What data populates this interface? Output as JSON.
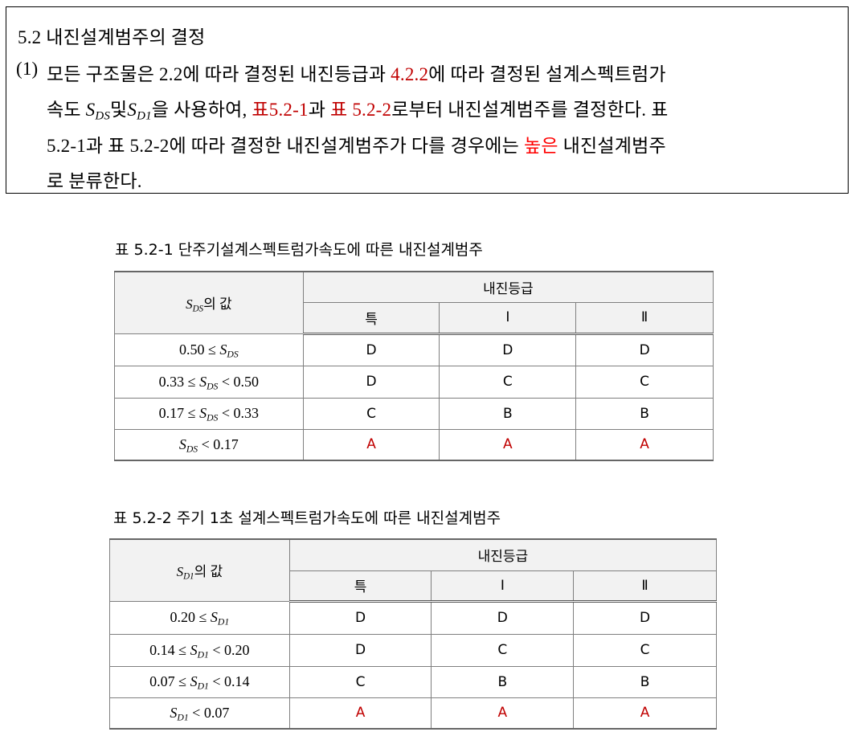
{
  "section": {
    "heading": "5.2 내진설계범주의 결정",
    "item_number": "(1)",
    "lines": [
      [
        {
          "t": "모든 구조물은 2.2에 따라 결정된 내진등급과 "
        },
        {
          "t": "4.2.2",
          "c": "red"
        },
        {
          "t": "에 따라 결정된 설계스펙트럼가"
        }
      ],
      [
        {
          "t": "속도 "
        },
        {
          "t": "S",
          "sub": "DS"
        },
        {
          "t": "및"
        },
        {
          "t": "S",
          "sub": "D1"
        },
        {
          "t": "을 사용하여, "
        },
        {
          "t": "표5.2-1",
          "c": "red"
        },
        {
          "t": "과 "
        },
        {
          "t": "표 5.2-2",
          "c": "red"
        },
        {
          "t": "로부터 내진설계범주를 결정한다. 표"
        }
      ],
      [
        {
          "t": "5.2-1과 표 5.2-2에 따라 결정한 내진설계범주가 다를 경우에는 "
        },
        {
          "t": "높은",
          "c": "bred"
        },
        {
          "t": " 내진설계범주"
        }
      ],
      [
        {
          "t": "로 분류한다."
        }
      ]
    ]
  },
  "tables": [
    {
      "caption": "표 5.2-1 단주기설계스펙트럼가속도에 따른 내진설계범주",
      "value_header": {
        "sym": "S",
        "sub": "DS",
        "post": "의 값"
      },
      "group_header": "내진등급",
      "columns": [
        "특",
        "Ⅰ",
        "Ⅱ"
      ],
      "rows": [
        {
          "label": {
            "pre": "0.50  ≤ ",
            "sym": "S",
            "sub": "DS",
            "post": ""
          },
          "values": [
            "D",
            "D",
            "D"
          ]
        },
        {
          "label": {
            "pre": "0.33 ≤ ",
            "sym": "S",
            "sub": "DS",
            "post": "  < 0.50"
          },
          "values": [
            "D",
            "C",
            "C"
          ]
        },
        {
          "label": {
            "pre": "0.17 ≤ ",
            "sym": "S",
            "sub": "DS",
            "post": " < 0.33"
          },
          "values": [
            "C",
            "B",
            "B"
          ]
        },
        {
          "label": {
            "pre": "",
            "sym": "S",
            "sub": "DS",
            "post": " < 0.17"
          },
          "values": [
            "A",
            "A",
            "A"
          ]
        }
      ]
    },
    {
      "caption": "표 5.2-2 주기 1초 설계스펙트럼가속도에 따른 내진설계범주",
      "value_header": {
        "sym": "S",
        "sub": "D1",
        "post": "의 값"
      },
      "group_header": "내진등급",
      "columns": [
        "특",
        "Ⅰ",
        "Ⅱ"
      ],
      "rows": [
        {
          "label": {
            "pre": "0.20 ≤ ",
            "sym": "S",
            "sub": "D1",
            "post": ""
          },
          "values": [
            "D",
            "D",
            "D"
          ]
        },
        {
          "label": {
            "pre": "0.14 ≤ ",
            "sym": "S",
            "sub": "D1",
            "post": " < 0.20"
          },
          "values": [
            "D",
            "C",
            "C"
          ]
        },
        {
          "label": {
            "pre": "0.07 ≤ ",
            "sym": "S",
            "sub": "D1",
            "post": " < 0.14"
          },
          "values": [
            "C",
            "B",
            "B"
          ]
        },
        {
          "label": {
            "pre": "",
            "sym": "S",
            "sub": "D1",
            "post": " < 0.07"
          },
          "values": [
            "A",
            "A",
            "A"
          ]
        }
      ]
    }
  ],
  "colors": {
    "link_red": "#c00000",
    "emphasis_red": "#ff0000",
    "header_bg": "#f2f2f2"
  }
}
